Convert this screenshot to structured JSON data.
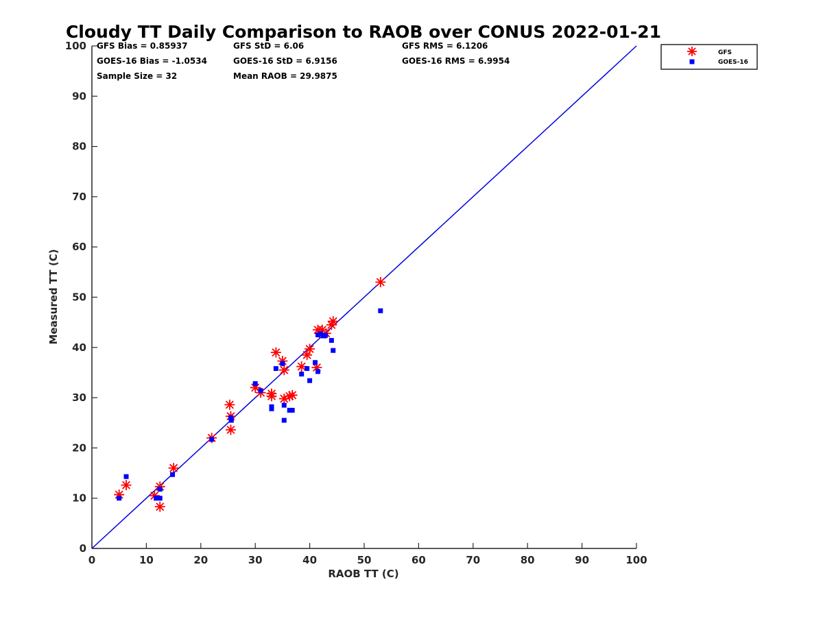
{
  "chart_data": {
    "type": "scatter",
    "title": "Cloudy TT Daily Comparison to RAOB over CONUS 2022-01-21",
    "xlabel": "RAOB TT (C)",
    "ylabel": "Measured TT (C)",
    "xlim": [
      0,
      100
    ],
    "ylim": [
      0,
      100
    ],
    "x_ticks": [
      0,
      10,
      20,
      30,
      40,
      50,
      60,
      70,
      80,
      90,
      100
    ],
    "y_ticks": [
      0,
      10,
      20,
      30,
      40,
      50,
      60,
      70,
      80,
      90,
      100
    ],
    "grid": false,
    "legend_position": "top-right-outside",
    "reference_line": {
      "x": [
        0,
        100
      ],
      "y": [
        0,
        100
      ],
      "color": "#0000dd"
    },
    "stats": [
      [
        "GFS Bias = 0.85937",
        "GFS StD = 6.06",
        "GFS RMS = 6.1206"
      ],
      [
        "GOES-16 Bias = -1.0534",
        "GOES-16 StD = 6.9156",
        "GOES-16 RMS = 6.9954"
      ],
      [
        "Sample Size = 32",
        "Mean RAOB = 29.9875",
        ""
      ]
    ],
    "series": [
      {
        "name": "GFS",
        "marker": "asterisk",
        "color": "#ff0000",
        "points": [
          [
            5.0,
            10.7
          ],
          [
            6.3,
            12.6
          ],
          [
            11.5,
            10.5
          ],
          [
            12.5,
            12.3
          ],
          [
            12.5,
            8.3
          ],
          [
            15.0,
            16.0
          ],
          [
            22.0,
            22.0
          ],
          [
            25.3,
            28.6
          ],
          [
            25.5,
            26.3
          ],
          [
            25.5,
            23.6
          ],
          [
            30.0,
            32.0
          ],
          [
            31.0,
            31.0
          ],
          [
            33.0,
            30.8
          ],
          [
            33.0,
            30.3
          ],
          [
            33.8,
            39.0
          ],
          [
            35.0,
            37.3
          ],
          [
            35.3,
            35.5
          ],
          [
            35.3,
            29.8
          ],
          [
            36.3,
            30.3
          ],
          [
            36.8,
            30.5
          ],
          [
            38.5,
            36.2
          ],
          [
            39.5,
            38.5
          ],
          [
            40.0,
            39.7
          ],
          [
            41.3,
            36.0
          ],
          [
            41.5,
            43.5
          ],
          [
            41.8,
            42.8
          ],
          [
            42.3,
            43.5
          ],
          [
            43.0,
            42.8
          ],
          [
            44.0,
            44.5
          ],
          [
            44.3,
            45.2
          ],
          [
            53.0,
            53.0
          ]
        ]
      },
      {
        "name": "GOES-16",
        "marker": "square",
        "color": "#0000ff",
        "points": [
          [
            5.0,
            10.0
          ],
          [
            6.3,
            14.3
          ],
          [
            11.8,
            10.0
          ],
          [
            12.5,
            10.0
          ],
          [
            12.5,
            11.8
          ],
          [
            14.8,
            14.7
          ],
          [
            22.0,
            21.7
          ],
          [
            25.5,
            26.0
          ],
          [
            25.6,
            25.5
          ],
          [
            30.0,
            32.8
          ],
          [
            31.0,
            31.4
          ],
          [
            33.0,
            28.2
          ],
          [
            33.0,
            27.8
          ],
          [
            33.8,
            35.8
          ],
          [
            35.0,
            36.8
          ],
          [
            35.3,
            28.5
          ],
          [
            35.3,
            25.5
          ],
          [
            36.3,
            27.5
          ],
          [
            36.8,
            27.5
          ],
          [
            38.5,
            34.7
          ],
          [
            39.5,
            35.8
          ],
          [
            40.0,
            33.4
          ],
          [
            41.0,
            37.0
          ],
          [
            41.5,
            35.2
          ],
          [
            41.5,
            42.5
          ],
          [
            42.0,
            42.7
          ],
          [
            42.5,
            42.3
          ],
          [
            42.9,
            42.4
          ],
          [
            44.0,
            41.4
          ],
          [
            44.3,
            39.4
          ],
          [
            53.0,
            47.3
          ]
        ]
      }
    ]
  }
}
